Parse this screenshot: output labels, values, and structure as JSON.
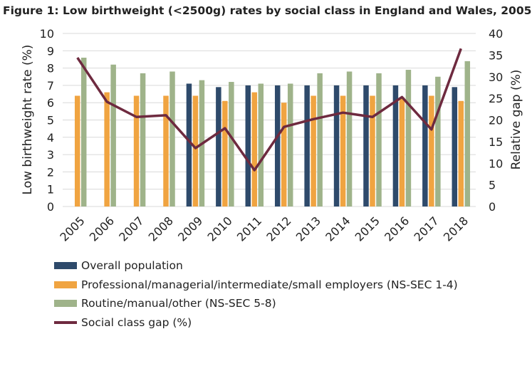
{
  "title": {
    "bold": "Figure 1:",
    "rest": " Low birthweight (<2500g) rates by social class in England and Wales, 2005-2018"
  },
  "chart_data": {
    "type": "bar+line",
    "categories": [
      "2005",
      "2006",
      "2007",
      "2008",
      "2009",
      "2010",
      "2011",
      "2012",
      "2013",
      "2014",
      "2015",
      "2016",
      "2017",
      "2018"
    ],
    "ylabel": "Low birthweight rate (%)",
    "y2label": "Relative gap (%)",
    "ylim": [
      0,
      10
    ],
    "y2lim": [
      0,
      40
    ],
    "yticks": [
      0,
      1,
      2,
      3,
      4,
      5,
      6,
      7,
      8,
      9,
      10
    ],
    "y2ticks": [
      0,
      5,
      10,
      15,
      20,
      25,
      30,
      35,
      40
    ],
    "grid": true,
    "legend": "bottom",
    "series": [
      {
        "name": "Overall population",
        "type": "bar",
        "color": "#2e4a6b",
        "values": [
          null,
          null,
          null,
          null,
          7.1,
          6.9,
          7.0,
          7.0,
          7.0,
          7.0,
          7.0,
          7.0,
          7.0,
          6.9
        ]
      },
      {
        "name": "Professional/managerial/intermediate/small employers (NS-SEC 1-4)",
        "type": "bar",
        "color": "#f0a441",
        "values": [
          6.4,
          6.6,
          6.4,
          6.4,
          6.4,
          6.1,
          6.6,
          6.0,
          6.4,
          6.4,
          6.4,
          6.3,
          6.4,
          6.1
        ]
      },
      {
        "name": "Routine/manual/other (NS-SEC 5-8)",
        "type": "bar",
        "color": "#9fb38a",
        "values": [
          8.6,
          8.2,
          7.7,
          7.8,
          7.3,
          7.2,
          7.1,
          7.1,
          7.7,
          7.8,
          7.7,
          7.9,
          7.5,
          8.4
        ]
      },
      {
        "name": "Social class gap (%)",
        "type": "line",
        "axis": "right",
        "color": "#6e2a3f",
        "values": [
          34.4,
          24.2,
          20.7,
          21.1,
          13.5,
          18.1,
          8.4,
          18.4,
          20.2,
          21.7,
          20.7,
          25.3,
          17.8,
          36.5
        ]
      }
    ]
  }
}
